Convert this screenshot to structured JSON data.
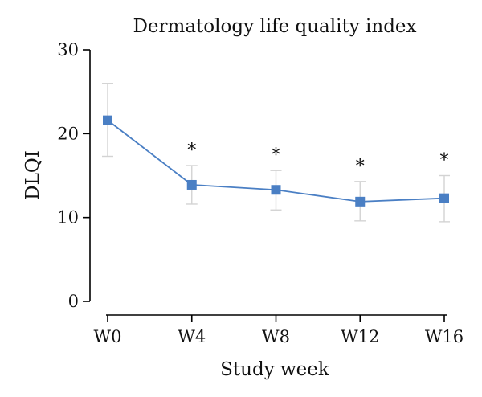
{
  "chart_data": {
    "type": "line",
    "title": "Dermatology life quality index",
    "xlabel": "Study week",
    "ylabel": "DLQI",
    "categories": [
      "W0",
      "W4",
      "W8",
      "W12",
      "W16"
    ],
    "ylim": [
      0,
      30
    ],
    "yticks": [
      0,
      10,
      20,
      30
    ],
    "series": [
      {
        "values": [
          21.6,
          13.9,
          13.3,
          11.9,
          12.3
        ],
        "error_low": [
          17.3,
          11.6,
          10.9,
          9.6,
          9.5
        ],
        "error_high": [
          26.0,
          16.2,
          15.6,
          14.3,
          15.0
        ],
        "color": "#4a7fc4",
        "marker": "square"
      }
    ],
    "annotations": [
      "",
      "*",
      "*",
      "*",
      "*"
    ],
    "error_bar_color": "#d3d3d3",
    "grid": false,
    "legend": "none"
  }
}
